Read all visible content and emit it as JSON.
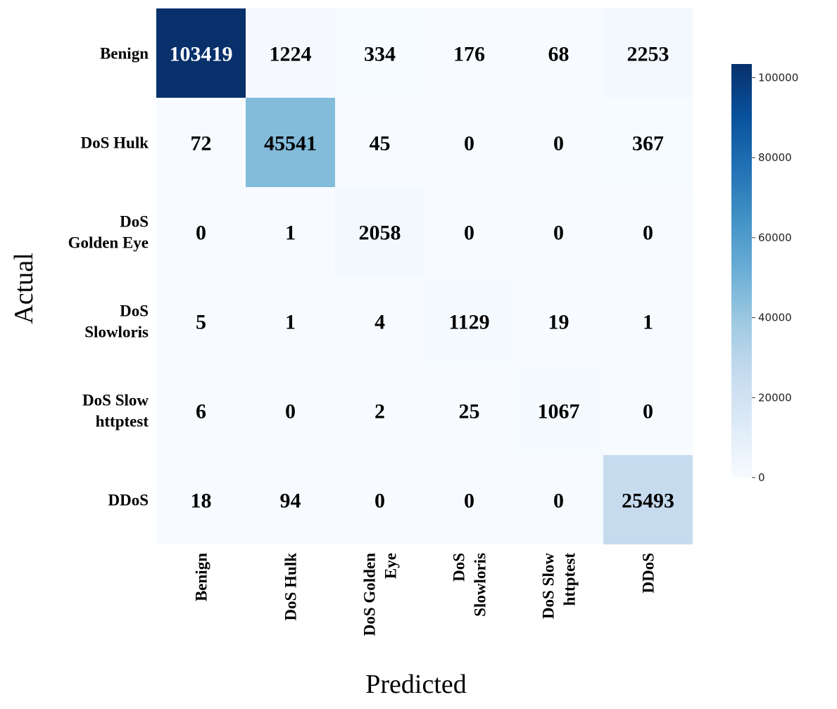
{
  "chart_data": {
    "type": "heatmap",
    "title": "",
    "xlabel": "Predicted",
    "ylabel": "Actual",
    "rows": [
      [
        "Benign"
      ],
      [
        "DoS Hulk"
      ],
      [
        "DoS",
        "Golden Eye"
      ],
      [
        "DoS",
        "Slowloris"
      ],
      [
        "DoS Slow",
        "httptest"
      ],
      [
        "DDoS"
      ]
    ],
    "columns": [
      [
        "Benign"
      ],
      [
        "DoS Hulk"
      ],
      [
        "DoS Golden",
        "Eye"
      ],
      [
        "DoS",
        "Slowloris"
      ],
      [
        "DoS Slow",
        "httptest"
      ],
      [
        "DDoS"
      ]
    ],
    "values": [
      [
        103419,
        1224,
        334,
        176,
        68,
        2253
      ],
      [
        72,
        45541,
        45,
        0,
        0,
        367
      ],
      [
        0,
        1,
        2058,
        0,
        0,
        0
      ],
      [
        5,
        1,
        4,
        1129,
        19,
        1
      ],
      [
        6,
        0,
        2,
        25,
        1067,
        0
      ],
      [
        18,
        94,
        0,
        0,
        0,
        25493
      ]
    ],
    "colorbar": {
      "min": 0,
      "max": 103419,
      "ticks": [
        0,
        20000,
        40000,
        60000,
        80000,
        100000
      ],
      "colormap": "Blues"
    }
  }
}
